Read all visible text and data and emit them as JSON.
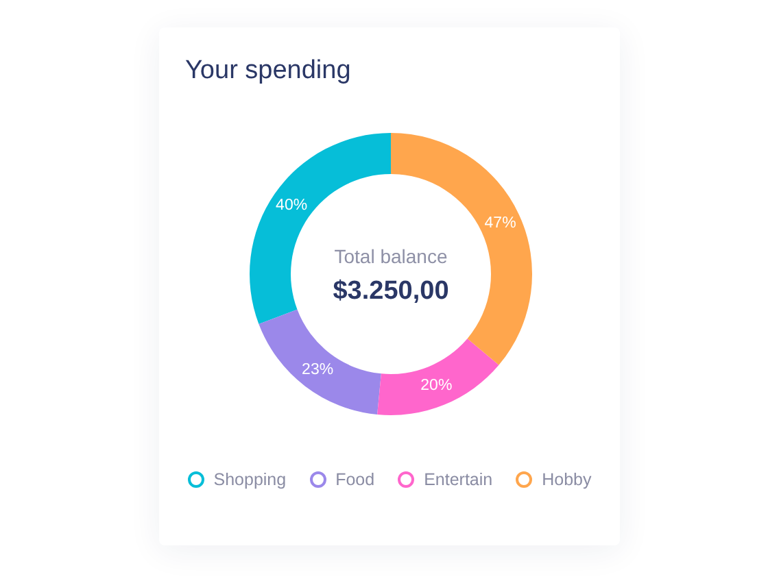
{
  "chart_data": {
    "type": "donut",
    "title": "Your spending",
    "categories": [
      "Shopping",
      "Food",
      "Entertain",
      "Hobby"
    ],
    "values": [
      40,
      23,
      20,
      47
    ],
    "colors": [
      "#06bed8",
      "#9b88ea",
      "#ff66cc",
      "#ffa64d"
    ],
    "value_labels": [
      "40%",
      "23%",
      "20%",
      "47%"
    ],
    "annotations": [
      "Total balance",
      "$3.250,00"
    ],
    "legend": "bottom"
  }
}
